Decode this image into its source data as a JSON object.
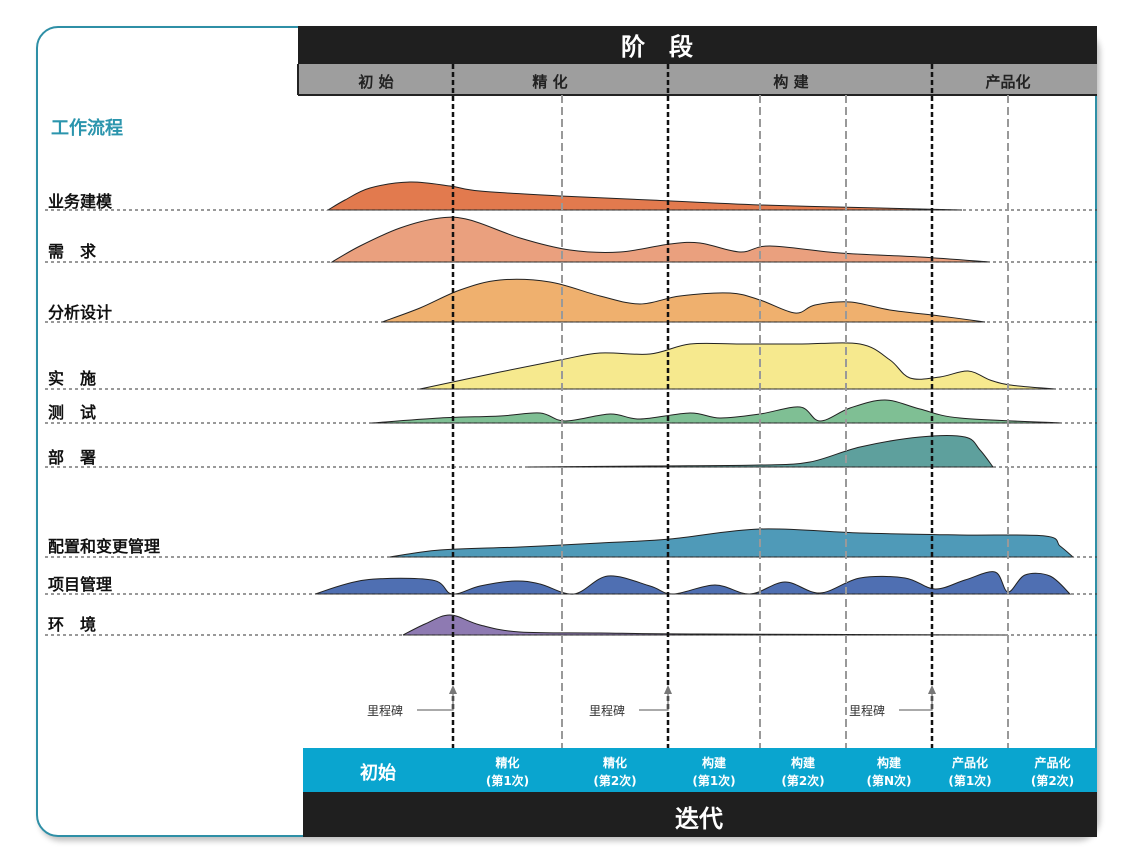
{
  "header": {
    "title": "阶　段"
  },
  "phases": [
    "初 始",
    "精 化",
    "构 建",
    "产品化"
  ],
  "workflow_title": "工作流程",
  "workflows": [
    {
      "label": "业务建模",
      "color": "#e27a4e"
    },
    {
      "label": "需　求",
      "color": "#eaa07e"
    },
    {
      "label": "分析设计",
      "color": "#efb06e"
    },
    {
      "label": "实　施",
      "color": "#f6e98e"
    },
    {
      "label": "测　试",
      "color": "#7fbf94"
    },
    {
      "label": "部　署",
      "color": "#5ea09d"
    },
    {
      "label": "配置和变更管理",
      "color": "#4f9ab8"
    },
    {
      "label": "项目管理",
      "color": "#4f6fb2"
    },
    {
      "label": "环　境",
      "color": "#8e7ab2"
    }
  ],
  "milestone_label": "里程碑",
  "iterations": [
    {
      "line1": "初始",
      "line2": ""
    },
    {
      "line1": "精化",
      "line2": "(第1次)"
    },
    {
      "line1": "精化",
      "line2": "(第2次)"
    },
    {
      "line1": "构建",
      "line2": "(第1次)"
    },
    {
      "line1": "构建",
      "line2": "(第2次)"
    },
    {
      "line1": "构建",
      "line2": "(第N次)"
    },
    {
      "line1": "产品化",
      "line2": "(第1次)"
    },
    {
      "line1": "产品化",
      "line2": "(第2次)"
    }
  ],
  "footer": {
    "title": "迭代"
  },
  "colors": {
    "accent": "#2e8fa6",
    "iteration_bar": "#0aa5cf",
    "header_bg": "#1f1f1f",
    "phase_bg": "#9e9e9e",
    "workflow_title": "#2b95ad"
  }
}
